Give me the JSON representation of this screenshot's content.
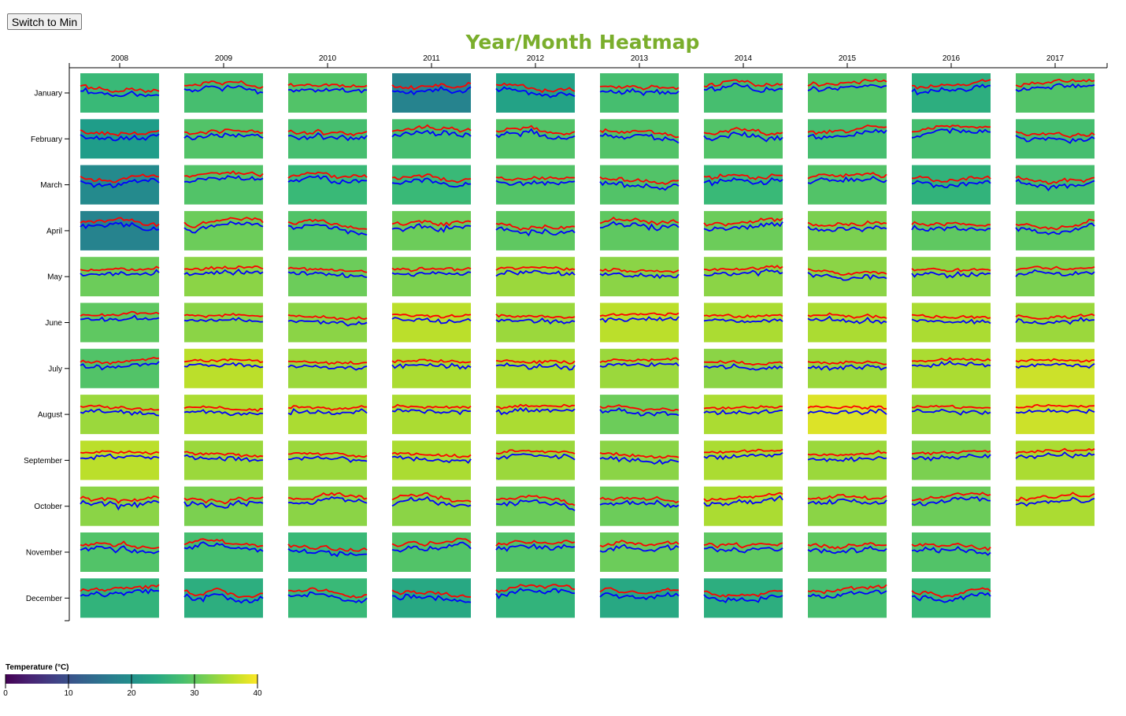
{
  "controls": {
    "switch_label": "Switch to Min"
  },
  "colors": {
    "title": "#7aae2c",
    "max_line": "#ff0000",
    "min_line": "#0000ff",
    "axis": "#000000"
  },
  "chart_data": {
    "type": "heatmap",
    "title": "Year/Month Heatmap",
    "x_axis_position": "top",
    "y_axis_position": "left",
    "years": [
      "2008",
      "2009",
      "2010",
      "2011",
      "2012",
      "2013",
      "2014",
      "2015",
      "2016",
      "2017"
    ],
    "months": [
      "January",
      "February",
      "March",
      "April",
      "May",
      "June",
      "July",
      "August",
      "September",
      "October",
      "November",
      "December"
    ],
    "cell_metric": "max temperature (°C)",
    "cell_values": [
      [
        27,
        22,
        19,
        18,
        31,
        30,
        29,
        34,
        36,
        33,
        29,
        26
      ],
      [
        28,
        29,
        29,
        31,
        33,
        33,
        36,
        35,
        34,
        32,
        28,
        25
      ],
      [
        29,
        28,
        27,
        29,
        31,
        33,
        34,
        35,
        34,
        33,
        27,
        27
      ],
      [
        18,
        28,
        27,
        31,
        32,
        36,
        35,
        35,
        35,
        33,
        29,
        24
      ],
      [
        23,
        29,
        29,
        30,
        34,
        34,
        35,
        35,
        34,
        31,
        29,
        26
      ],
      [
        28,
        29,
        29,
        30,
        33,
        36,
        34,
        31,
        33,
        31,
        31,
        24
      ],
      [
        28,
        29,
        27,
        31,
        33,
        35,
        33,
        35,
        35,
        35,
        30,
        25
      ],
      [
        29,
        28,
        29,
        32,
        33,
        35,
        34,
        38,
        34,
        33,
        30,
        28
      ],
      [
        25,
        28,
        26,
        30,
        33,
        35,
        35,
        34,
        32,
        31,
        29,
        27
      ],
      [
        29,
        28,
        28,
        30,
        32,
        34,
        37,
        37,
        35,
        35,
        null,
        null
      ]
    ],
    "line_series": [
      {
        "name": "max",
        "color": "#ff0000"
      },
      {
        "name": "min",
        "color": "#0000ff"
      }
    ],
    "legend": {
      "title": "Temperature (°C)",
      "colormap": "viridis",
      "domain": [
        0,
        40
      ],
      "ticks": [
        "0",
        "10",
        "20",
        "30",
        "40"
      ]
    }
  }
}
